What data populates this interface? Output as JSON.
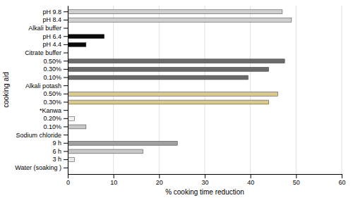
{
  "chart_data": {
    "type": "bar",
    "orientation": "horizontal",
    "categories": [
      "pH 9.8",
      "pH 8.4",
      "Alkali buffer",
      "pH 6.4",
      "pH 4.4",
      "Citrate buffer",
      "0.50%",
      "0.30%",
      "0.10%",
      "Alkali potash",
      "0.50%",
      "0.30%",
      "*Kanwa",
      "0.20%",
      "0.10%",
      "Sodium chloride",
      "9 h",
      "6 h",
      "3 h",
      "Water (soaking )"
    ],
    "values": [
      47,
      49,
      0,
      8,
      4,
      0,
      47.5,
      44,
      39.5,
      0,
      46,
      44,
      0,
      1.5,
      4,
      0,
      24,
      16.5,
      1.5,
      0
    ],
    "colors": [
      "#d0d0d0",
      "#d0d0d0",
      null,
      "#0a0a0a",
      "#0a0a0a",
      null,
      "#6b6b6b",
      "#6b6b6b",
      "#6b6b6b",
      null,
      "#d9c98a",
      "#d9c98a",
      null,
      "#f0f0f0",
      "#c8c8c8",
      null,
      "#a0a0a0",
      "#c8c8c8",
      "#e8e8e8",
      null
    ],
    "xlabel": "% cooking time reduction",
    "ylabel": "cooking aid",
    "xlim": [
      0,
      60
    ],
    "xticks": [
      0,
      10,
      20,
      30,
      40,
      50,
      60
    ],
    "grid": true
  }
}
